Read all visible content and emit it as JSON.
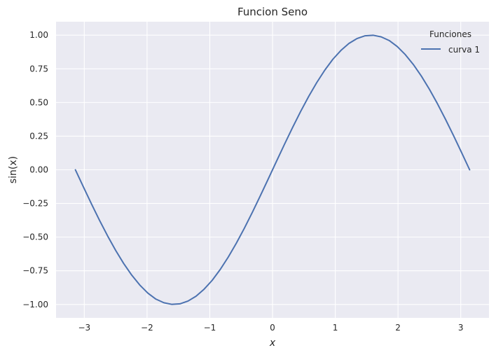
{
  "chart_data": {
    "type": "line",
    "title": "Funcion Seno",
    "xlabel": "x",
    "ylabel": "sin(x)",
    "xlim": [
      -3.45,
      3.45
    ],
    "ylim": [
      -1.1,
      1.1
    ],
    "xticks": [
      -3,
      -2,
      -1,
      0,
      1,
      2,
      3
    ],
    "xtick_labels": [
      "−3",
      "−2",
      "−1",
      "0",
      "1",
      "2",
      "3"
    ],
    "yticks": [
      -1.0,
      -0.75,
      -0.5,
      -0.25,
      0.0,
      0.25,
      0.5,
      0.75,
      1.0
    ],
    "ytick_labels": [
      "−1.00",
      "−0.75",
      "−0.50",
      "−0.25",
      "0.00",
      "0.25",
      "0.50",
      "0.75",
      "1.00"
    ],
    "grid": true,
    "legend": {
      "title": "Funciones",
      "placement": "top-right"
    },
    "colors": {
      "background": "#eaeaf2",
      "grid": "#ffffff",
      "line": "#4c72b0"
    },
    "series": [
      {
        "name": "curva 1",
        "x": [
          -3.1416,
          -3.0134,
          -2.8851,
          -2.7569,
          -2.6287,
          -2.5005,
          -2.3722,
          -2.244,
          -2.1158,
          -1.9875,
          -1.8593,
          -1.7311,
          -1.6029,
          -1.4746,
          -1.3464,
          -1.2182,
          -1.0899,
          -0.9617,
          -0.8335,
          -0.7053,
          -0.577,
          -0.4488,
          -0.3206,
          -0.1923,
          -0.0641,
          0.0641,
          0.1923,
          0.3206,
          0.4488,
          0.577,
          0.7053,
          0.8335,
          0.9617,
          1.0899,
          1.2182,
          1.3464,
          1.4746,
          1.6029,
          1.7311,
          1.8593,
          1.9875,
          2.1158,
          2.244,
          2.3722,
          2.5005,
          2.6287,
          2.7569,
          2.8851,
          3.0134,
          3.1416
        ],
        "y": [
          0.0,
          -0.1279,
          -0.2537,
          -0.3752,
          -0.4907,
          -0.5981,
          -0.6959,
          -0.7822,
          -0.8558,
          -0.9155,
          -0.9603,
          -0.9874,
          -0.9995,
          -0.9954,
          -0.9749,
          -0.9388,
          -0.8866,
          -0.8211,
          -0.7405,
          -0.6482,
          -0.5455,
          -0.4339,
          -0.3151,
          -0.1911,
          -0.0641,
          0.0641,
          0.1911,
          0.3151,
          0.4339,
          0.5455,
          0.6482,
          0.7405,
          0.8211,
          0.8866,
          0.9388,
          0.9749,
          0.9954,
          0.9995,
          0.9874,
          0.9603,
          0.9155,
          0.8558,
          0.7822,
          0.6959,
          0.5981,
          0.4907,
          0.3752,
          0.2537,
          0.1279,
          0.0
        ]
      }
    ]
  }
}
